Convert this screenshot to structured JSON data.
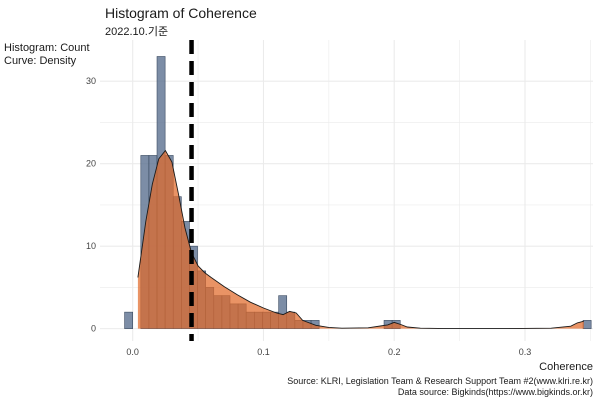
{
  "chart_data": {
    "type": "bar",
    "title": "Histogram of Coherence",
    "subtitle": "2022.10.기준",
    "ylabel_lines": [
      "Histogram: Count",
      "Curve: Density"
    ],
    "xlabel": "Coherence",
    "caption_lines": [
      "Source: KLRI, Legislation Team & Research Support Team #2(www.klri.re.kr)",
      "Data source: Bigkinds(https://www.bigkinds.or.kr)"
    ],
    "xlim": [
      -0.025,
      0.352
    ],
    "ylim": [
      -1.5,
      35
    ],
    "x_ticks": [
      0.0,
      0.1,
      0.2,
      0.3
    ],
    "x_tick_labels": [
      "0.0",
      "0.1",
      "0.2",
      "0.3"
    ],
    "y_ticks": [
      0,
      10,
      20,
      30
    ],
    "y_tick_labels": [
      "0",
      "10",
      "20",
      "30"
    ],
    "grid": true,
    "histogram": {
      "bin_width": 0.0062,
      "bins": [
        {
          "x": -0.0031,
          "count": 2
        },
        {
          "x": 0.0093,
          "count": 21
        },
        {
          "x": 0.0155,
          "count": 21
        },
        {
          "x": 0.0217,
          "count": 33
        },
        {
          "x": 0.0279,
          "count": 21
        },
        {
          "x": 0.0341,
          "count": 16
        },
        {
          "x": 0.0403,
          "count": 13
        },
        {
          "x": 0.0465,
          "count": 10
        },
        {
          "x": 0.0527,
          "count": 7
        },
        {
          "x": 0.0589,
          "count": 5
        },
        {
          "x": 0.0651,
          "count": 4
        },
        {
          "x": 0.0713,
          "count": 4
        },
        {
          "x": 0.0775,
          "count": 3
        },
        {
          "x": 0.0837,
          "count": 3
        },
        {
          "x": 0.0899,
          "count": 2
        },
        {
          "x": 0.0961,
          "count": 2
        },
        {
          "x": 0.1023,
          "count": 2
        },
        {
          "x": 0.1085,
          "count": 2
        },
        {
          "x": 0.1147,
          "count": 4
        },
        {
          "x": 0.1209,
          "count": 2
        },
        {
          "x": 0.1271,
          "count": 1
        },
        {
          "x": 0.1333,
          "count": 1
        },
        {
          "x": 0.1395,
          "count": 1
        },
        {
          "x": 0.1953,
          "count": 1
        },
        {
          "x": 0.2015,
          "count": 1
        },
        {
          "x": 0.3475,
          "count": 1
        }
      ]
    },
    "density_curve": {
      "x": [
        0.004,
        0.01,
        0.015,
        0.02,
        0.025,
        0.03,
        0.035,
        0.04,
        0.045,
        0.05,
        0.055,
        0.06,
        0.07,
        0.08,
        0.09,
        0.1,
        0.11,
        0.115,
        0.12,
        0.125,
        0.13,
        0.14,
        0.15,
        0.16,
        0.18,
        0.195,
        0.2,
        0.205,
        0.21,
        0.22,
        0.24,
        0.28,
        0.32,
        0.335,
        0.34,
        0.345
      ],
      "y": [
        6.2,
        13.0,
        17.5,
        20.6,
        21.6,
        20.2,
        16.3,
        12.2,
        9.2,
        7.6,
        6.8,
        6.2,
        5.1,
        4.1,
        3.2,
        2.5,
        1.9,
        1.7,
        2.1,
        1.9,
        1.0,
        0.4,
        0.15,
        0.05,
        0.1,
        0.45,
        0.75,
        0.5,
        0.2,
        0.05,
        0.0,
        0.0,
        0.05,
        0.3,
        0.7,
        0.9
      ]
    },
    "mean_line_x": 0.045,
    "colors": {
      "bars_fill": "#5b7190",
      "bars_stroke": "#3a4a60",
      "density_fill": "#e06a2a",
      "density_stroke": "#1a1a1a",
      "mean_line": "#000000",
      "grid": "#ebebeb"
    }
  }
}
